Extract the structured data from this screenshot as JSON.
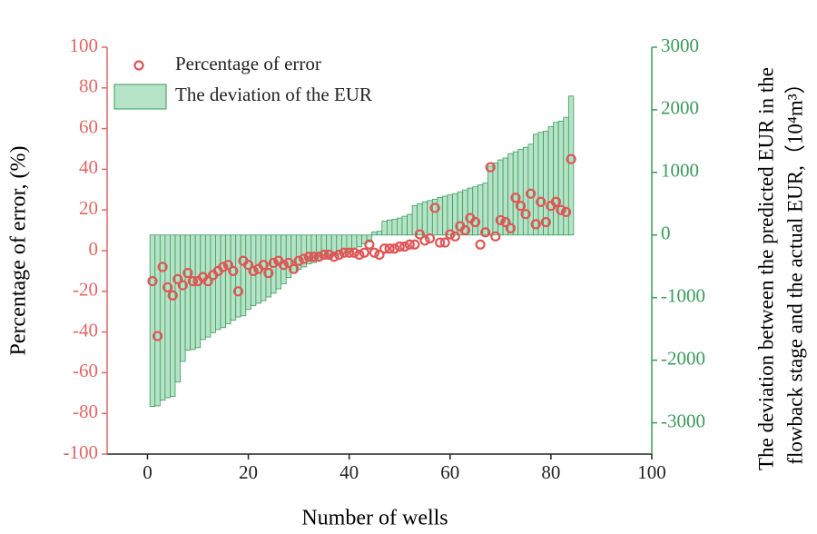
{
  "chart_data": {
    "type": "combo",
    "xlabel": "Number of wells",
    "ylabel": "Percentage of error, (%)",
    "y2label": [
      "The deviation between the predicted EUR in the",
      "flowback stage and the actual EUR,（10⁴m³）"
    ],
    "xlim": [
      -8,
      100
    ],
    "xticks": [
      0,
      20,
      40,
      60,
      80,
      100
    ],
    "ylim": [
      -100,
      100
    ],
    "yticks": [
      -100,
      -80,
      -60,
      -40,
      -20,
      0,
      20,
      40,
      60,
      80,
      100
    ],
    "y2lim": [
      -3500,
      3000
    ],
    "y2ticks": [
      -3000,
      -2000,
      -1000,
      0,
      1000,
      2000,
      3000
    ],
    "legend": "upper left",
    "y_color": "#e06666",
    "y2_color": "#3a9a5a",
    "x": [
      1,
      2,
      3,
      4,
      5,
      6,
      7,
      8,
      9,
      10,
      11,
      12,
      13,
      14,
      15,
      16,
      17,
      18,
      19,
      20,
      21,
      22,
      23,
      24,
      25,
      26,
      27,
      28,
      29,
      30,
      31,
      32,
      33,
      34,
      35,
      36,
      37,
      38,
      39,
      40,
      41,
      42,
      43,
      44,
      45,
      46,
      47,
      48,
      49,
      50,
      51,
      52,
      53,
      54,
      55,
      56,
      57,
      58,
      59,
      60,
      61,
      62,
      63,
      64,
      65,
      66,
      67,
      68,
      69,
      70,
      71,
      72,
      73,
      74,
      75,
      76,
      77,
      78,
      79,
      80,
      81,
      82,
      83,
      84
    ],
    "series": [
      {
        "name": "Percentage of error",
        "type": "scatter",
        "axis": "y",
        "color": "#e05555",
        "values": [
          -15,
          -42,
          -8,
          -18,
          -22,
          -14,
          -17,
          -11,
          -15,
          -15,
          -13,
          -15,
          -12,
          -10,
          -8,
          -7,
          -10,
          -20,
          -5,
          -7,
          -10,
          -9,
          -7,
          -11,
          -6,
          -5,
          -7,
          -6,
          -9,
          -5,
          -4,
          -3,
          -3,
          -3,
          -2,
          -2,
          -3,
          -2,
          -1,
          -1,
          -1,
          -2,
          -1,
          3,
          -1,
          -2,
          1,
          1,
          1,
          2,
          2,
          3,
          3,
          8,
          5,
          6,
          21,
          4,
          4,
          8,
          7,
          12,
          10,
          16,
          14,
          3,
          9,
          41,
          7,
          15,
          14,
          11,
          26,
          22,
          18,
          28,
          13,
          24,
          14,
          22,
          24,
          20,
          19,
          45
        ]
      },
      {
        "name": "The deviation of the EUR",
        "type": "bar",
        "axis": "y2",
        "color": "#b6e3c7",
        "values": [
          -2740,
          -2730,
          -2640,
          -2600,
          -2580,
          -2350,
          -2020,
          -1840,
          -1830,
          -1800,
          -1670,
          -1630,
          -1560,
          -1510,
          -1480,
          -1420,
          -1360,
          -1310,
          -1290,
          -1190,
          -1130,
          -1090,
          -1050,
          -990,
          -930,
          -860,
          -780,
          -680,
          -610,
          -550,
          -510,
          -460,
          -440,
          -410,
          -380,
          -360,
          -330,
          -300,
          -290,
          -280,
          -230,
          -190,
          -140,
          -110,
          50,
          60,
          220,
          240,
          250,
          270,
          300,
          330,
          470,
          500,
          530,
          550,
          570,
          600,
          620,
          640,
          660,
          690,
          720,
          750,
          770,
          800,
          830,
          1100,
          1150,
          1200,
          1230,
          1300,
          1330,
          1370,
          1400,
          1450,
          1610,
          1640,
          1660,
          1730,
          1800,
          1820,
          1880,
          2220
        ]
      }
    ]
  }
}
